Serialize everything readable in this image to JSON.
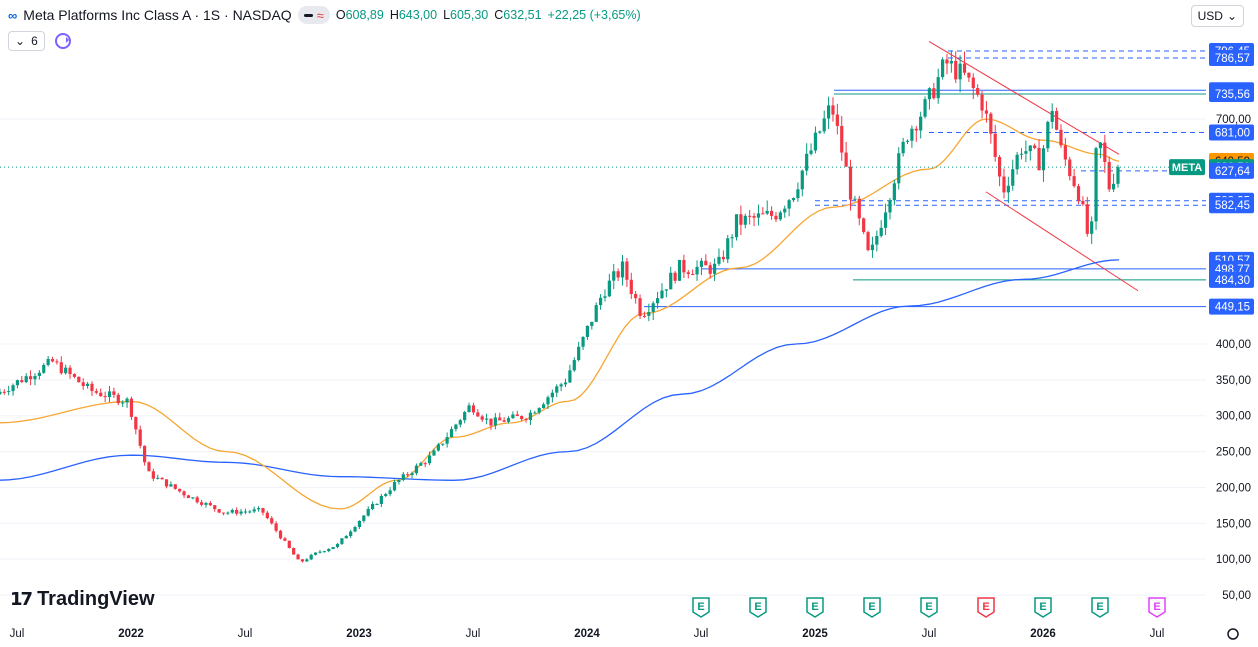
{
  "header": {
    "symbol": "Meta Platforms Inc Class A · 1S · NASDAQ",
    "open_label": "O",
    "open": "608,89",
    "high_label": "H",
    "high": "643,00",
    "low_label": "L",
    "low": "605,30",
    "close_label": "C",
    "close": "632,51",
    "change": "+22,25 (+3,65%)",
    "interval_badge": "≈",
    "indicator_count": "6",
    "currency": "USD"
  },
  "branding": {
    "name": "TradingView"
  },
  "colors": {
    "up": "#089981",
    "down": "#f23645",
    "ma50": "#f7a631",
    "ma200": "#2962ff",
    "channel": "#f23645",
    "accent": "#2962ff"
  },
  "chart_data": {
    "type": "candlestick",
    "title": "Meta Platforms Inc Class A · 1S · NASDAQ",
    "price_axis": {
      "ticks": [
        50,
        100,
        150,
        200,
        250,
        300,
        350,
        400,
        700
      ],
      "tick_labels": [
        "50,00",
        "100,00",
        "150,00",
        "200,00",
        "250,00",
        "300,00",
        "350,00",
        "400,00",
        "700,00"
      ]
    },
    "time_axis": {
      "labels": [
        "Jul",
        "2022",
        "Jul",
        "2023",
        "Jul",
        "2024",
        "Jul",
        "2025",
        "Jul",
        "2026",
        "Jul"
      ],
      "bold": [
        "2022",
        "2023",
        "2024",
        "2025",
        "2026"
      ]
    },
    "anchors": [
      [
        "2021-06",
        330
      ],
      [
        "2021-09",
        375
      ],
      [
        "2021-11",
        335
      ],
      [
        "2022-01",
        320
      ],
      [
        "2022-02",
        220
      ],
      [
        "2022-04",
        190
      ],
      [
        "2022-06",
        165
      ],
      [
        "2022-08",
        168
      ],
      [
        "2022-10",
        95
      ],
      [
        "2022-11",
        110
      ],
      [
        "2022-12",
        120
      ],
      [
        "2023-01",
        150
      ],
      [
        "2023-02",
        178
      ],
      [
        "2023-03",
        205
      ],
      [
        "2023-05",
        245
      ],
      [
        "2023-07",
        315
      ],
      [
        "2023-08",
        290
      ],
      [
        "2023-10",
        300
      ],
      [
        "2023-12",
        350
      ],
      [
        "2024-02",
        470
      ],
      [
        "2024-03",
        500
      ],
      [
        "2024-04",
        440
      ],
      [
        "2024-05",
        470
      ],
      [
        "2024-06",
        500
      ],
      [
        "2024-08",
        500
      ],
      [
        "2024-09",
        560
      ],
      [
        "2024-11",
        570
      ],
      [
        "2024-12",
        600
      ],
      [
        "2025-02",
        720
      ],
      [
        "2025-03",
        600
      ],
      [
        "2025-04",
        510
      ],
      [
        "2025-06",
        680
      ],
      [
        "2025-07",
        720
      ],
      [
        "2025-08",
        780
      ],
      [
        "2025-09",
        760
      ],
      [
        "2025-10",
        720
      ],
      [
        "2025-11",
        600
      ],
      [
        "2025-12",
        660
      ],
      [
        "2026-01",
        640
      ],
      [
        "2026-01-20",
        720
      ],
      [
        "2026-02",
        660
      ],
      [
        "2026-03",
        600
      ],
      [
        "2026-03-20",
        525
      ],
      [
        "2026-04",
        680
      ],
      [
        "2026-04-20",
        605
      ],
      [
        "2026-05",
        632.51
      ]
    ],
    "ma50": [
      [
        "2021-06",
        290
      ],
      [
        "2022-01",
        320
      ],
      [
        "2022-06",
        250
      ],
      [
        "2022-12",
        170
      ],
      [
        "2023-03",
        210
      ],
      [
        "2023-06",
        270
      ],
      [
        "2023-09",
        290
      ],
      [
        "2023-12",
        320
      ],
      [
        "2024-04",
        440
      ],
      [
        "2024-09",
        500
      ],
      [
        "2025-02",
        580
      ],
      [
        "2025-07",
        630
      ],
      [
        "2025-10",
        700
      ],
      [
        "2026-01",
        670
      ],
      [
        "2026-04",
        650
      ],
      [
        "2026-05",
        640.59
      ]
    ],
    "ma200": [
      [
        "2021-06",
        210
      ],
      [
        "2022-01",
        245
      ],
      [
        "2022-06",
        235
      ],
      [
        "2022-12",
        215
      ],
      [
        "2023-06",
        210
      ],
      [
        "2023-12",
        250
      ],
      [
        "2024-06",
        330
      ],
      [
        "2024-12",
        400
      ],
      [
        "2025-06",
        450
      ],
      [
        "2025-12",
        485
      ],
      [
        "2026-05",
        510.57
      ]
    ],
    "markers": {
      "last_price": "632,51",
      "ticker": "META",
      "ma50_value": "640,59"
    },
    "price_labels": [
      {
        "text": "796,45",
        "style": "blue",
        "price": 796.45
      },
      {
        "text": "786,57",
        "style": "blue",
        "price": 786.57
      },
      {
        "text": "740,77",
        "style": "blue",
        "price": 740.77
      },
      {
        "text": "735,56",
        "style": "blue",
        "price": 735.56
      },
      {
        "text": "700,00",
        "style": "tick",
        "price": 700
      },
      {
        "text": "681,00",
        "style": "blue",
        "price": 681
      },
      {
        "text": "640,59",
        "style": "orange",
        "price": 640.59
      },
      {
        "text": "632,51",
        "style": "green",
        "price": 632.51
      },
      {
        "text": "627,64",
        "style": "blue",
        "price": 627.64
      },
      {
        "text": "588,35",
        "style": "blue",
        "price": 588.35
      },
      {
        "text": "582,45",
        "style": "blue",
        "price": 582.45
      },
      {
        "text": "510,57",
        "style": "blue",
        "price": 510.57
      },
      {
        "text": "498,77",
        "style": "blue",
        "price": 498.77
      },
      {
        "text": "484,30",
        "style": "blue",
        "price": 484.3
      },
      {
        "text": "449,15",
        "style": "blue",
        "price": 449.15
      }
    ],
    "levels": [
      {
        "price": 796.45,
        "from": "2025-08",
        "style": "dashed",
        "color": "#2962ff"
      },
      {
        "price": 786.57,
        "from": "2025-08",
        "style": "dashed",
        "color": "#2962ff"
      },
      {
        "price": 740.77,
        "from": "2025-02",
        "style": "solid",
        "color": "#2962ff"
      },
      {
        "price": 735.56,
        "from": "2025-02",
        "style": "solid",
        "color": "#089981"
      },
      {
        "price": 681,
        "from": "2025-07",
        "style": "dashed",
        "color": "#2962ff"
      },
      {
        "price": 627.64,
        "from": "2026-03",
        "style": "dashed",
        "color": "#2962ff"
      },
      {
        "price": 588.35,
        "from": "2025-01",
        "style": "dashed",
        "color": "#2962ff"
      },
      {
        "price": 582.45,
        "from": "2025-01",
        "style": "dashed",
        "color": "#2962ff"
      },
      {
        "price": 498.77,
        "from": "2024-07",
        "style": "solid",
        "color": "#2962ff"
      },
      {
        "price": 484.3,
        "from": "2025-03",
        "style": "solid",
        "color": "#089981"
      },
      {
        "price": 449.15,
        "from": "2024-04",
        "style": "solid",
        "color": "#2962ff"
      }
    ],
    "channel": [
      {
        "from": [
          "2025-07",
          810
        ],
        "to": [
          "2026-05",
          650
        ]
      },
      {
        "from": [
          "2025-10",
          600
        ],
        "to": [
          "2026-06",
          470
        ]
      }
    ],
    "earnings": [
      {
        "label": "E",
        "date": "2024-07",
        "color": "#089981"
      },
      {
        "label": "E",
        "date": "2024-10",
        "color": "#089981"
      },
      {
        "label": "E",
        "date": "2025-01",
        "color": "#089981"
      },
      {
        "label": "E",
        "date": "2025-04",
        "color": "#089981"
      },
      {
        "label": "E",
        "date": "2025-07",
        "color": "#089981"
      },
      {
        "label": "E",
        "date": "2025-10",
        "color": "#f23645"
      },
      {
        "label": "E",
        "date": "2026-01",
        "color": "#089981"
      },
      {
        "label": "E",
        "date": "2026-04",
        "color": "#089981"
      },
      {
        "label": "E",
        "date": "2026-07",
        "color": "#e040fb"
      }
    ]
  }
}
